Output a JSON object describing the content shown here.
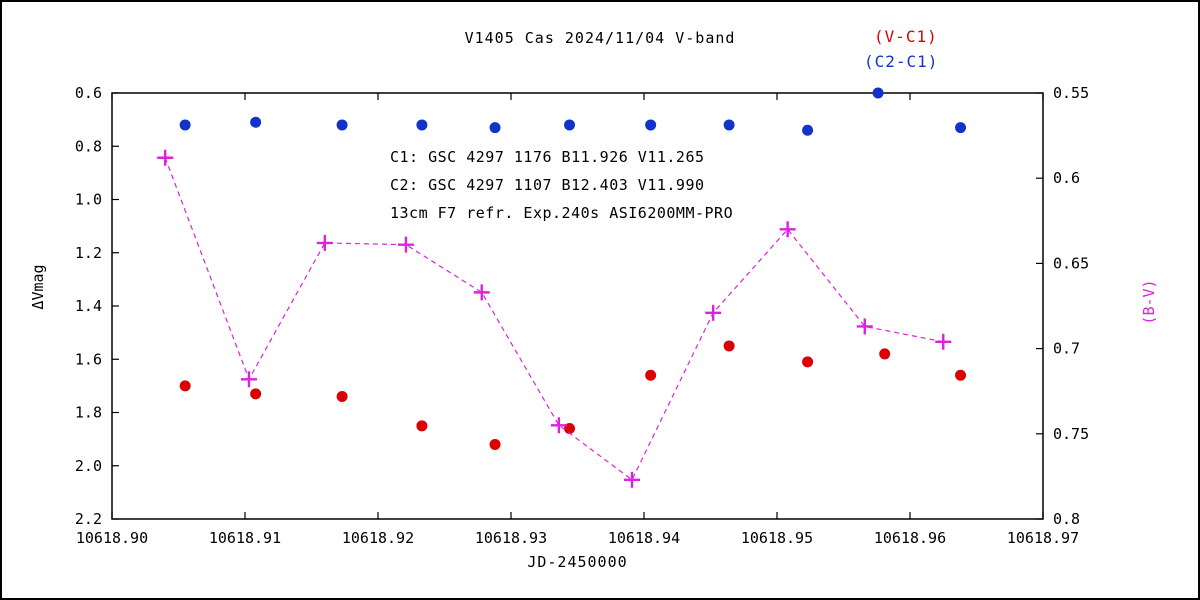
{
  "title": "V1405 Cas  2024/11/04  V-band",
  "legend": {
    "vc1": "(V-C1)",
    "c2c1": "(C2-C1)"
  },
  "annotations": {
    "line1": "C1: GSC 4297 1176  B11.926  V11.265",
    "line2": "C2: GSC 4297 1107  B12.403  V11.990",
    "line3": "13cm F7 refr. Exp.240s  ASI6200MM-PRO"
  },
  "axes": {
    "left_label": "ΔVmag",
    "right_label": "(B-V)",
    "x_label": "JD-2450000",
    "left_ticks": [
      "0.6",
      "0.8",
      "1.0",
      "1.2",
      "1.4",
      "1.6",
      "1.8",
      "2.0",
      "2.2"
    ],
    "right_ticks": [
      "0.55",
      "0.6",
      "0.65",
      "0.7",
      "0.75",
      "0.8"
    ],
    "x_ticks": [
      "10618.90",
      "10618.91",
      "10618.92",
      "10618.93",
      "10618.94",
      "10618.95",
      "10618.96",
      "10618.97"
    ]
  },
  "colors": {
    "vc1": "#dd0000",
    "c2c1": "#1133cc",
    "bv": "#dd22dd",
    "axis": "#000000"
  },
  "chart_data": {
    "type": "scatter",
    "title": "V1405 Cas 2024/11/04 V-band",
    "xlabel": "JD-2450000",
    "ylabel_left": "ΔVmag",
    "ylabel_right": "(B-V)",
    "x_range": [
      10618.9,
      10618.97
    ],
    "y_left_range": [
      0.6,
      2.2
    ],
    "y_left_top_is_min": true,
    "y_right_range": [
      0.55,
      0.8
    ],
    "grid": false,
    "legend_position": "top-right",
    "series": [
      {
        "name": "(V-C1)",
        "axis": "left",
        "marker": "circle",
        "line": false,
        "color": "#dd0000",
        "x": [
          10618.9055,
          10618.9108,
          10618.9173,
          10618.9233,
          10618.9288,
          10618.9344,
          10618.9405,
          10618.9464,
          10618.9523,
          10618.9581,
          10618.9638
        ],
        "y": [
          1.7,
          1.73,
          1.74,
          1.85,
          1.92,
          1.86,
          1.66,
          1.55,
          1.61,
          1.58,
          1.66
        ]
      },
      {
        "name": "(C2-C1)",
        "axis": "left",
        "marker": "circle",
        "line": false,
        "color": "#1133cc",
        "x": [
          10618.9055,
          10618.9108,
          10618.9173,
          10618.9233,
          10618.9288,
          10618.9344,
          10618.9405,
          10618.9464,
          10618.9523,
          10618.9576,
          10618.9638
        ],
        "y": [
          0.72,
          0.71,
          0.72,
          0.72,
          0.73,
          0.72,
          0.72,
          0.72,
          0.74,
          0.6,
          0.73
        ]
      },
      {
        "name": "(B-V)",
        "axis": "right",
        "marker": "plus",
        "line": "dashed",
        "color": "#dd22dd",
        "x": [
          10618.904,
          10618.9103,
          10618.916,
          10618.9221,
          10618.9278,
          10618.9336,
          10618.9391,
          10618.9452,
          10618.9508,
          10618.9566,
          10618.9625
        ],
        "y": [
          0.588,
          0.718,
          0.638,
          0.639,
          0.667,
          0.745,
          0.777,
          0.679,
          0.63,
          0.687,
          0.696
        ]
      }
    ]
  }
}
